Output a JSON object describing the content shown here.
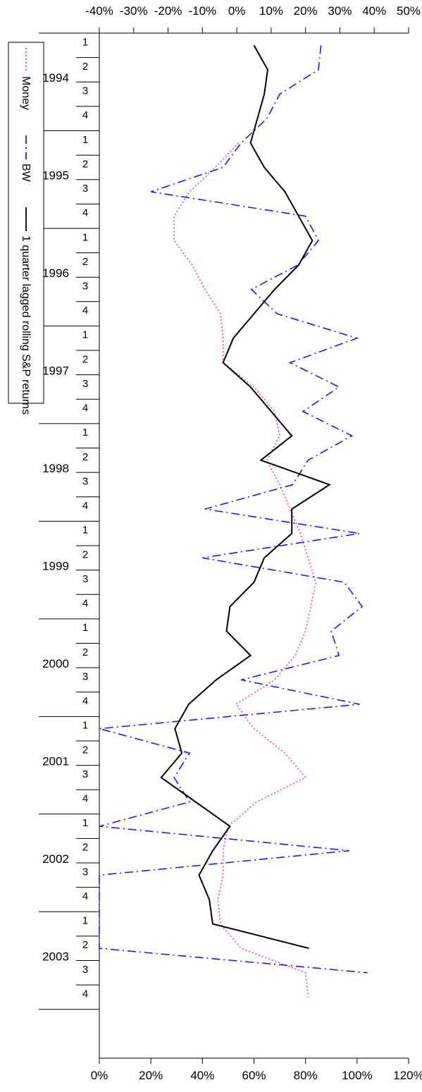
{
  "chart_data": {
    "type": "line",
    "quarter_labels": [
      "1",
      "2",
      "3",
      "4"
    ],
    "years": [
      "1994",
      "1995",
      "1996",
      "1997",
      "1998",
      "1999",
      "2000",
      "2001",
      "2002",
      "2003"
    ],
    "left_axis": {
      "ylim": [
        0,
        120
      ],
      "ticks": [
        0,
        20,
        40,
        60,
        80,
        100,
        120
      ],
      "tick_labels": [
        "0%",
        "20%",
        "40%",
        "60%",
        "80%",
        "100%",
        "120%"
      ]
    },
    "right_axis": {
      "ylim": [
        -40,
        50
      ],
      "ticks": [
        -40,
        -30,
        -20,
        -10,
        0,
        10,
        20,
        30,
        40,
        50
      ],
      "tick_labels": [
        "-40%",
        "-30%",
        "-20%",
        "-10%",
        "0%",
        "10%",
        "20%",
        "30%",
        "40%",
        "50%"
      ]
    },
    "series": [
      {
        "name": "Money",
        "axis": "left",
        "color": "#ff33cc",
        "style": "dotted",
        "values": [
          null,
          null,
          null,
          null,
          54,
          45,
          35,
          29,
          29,
          36,
          41,
          47,
          48,
          48,
          60,
          68,
          70,
          65,
          70,
          74,
          78,
          81,
          84,
          82,
          80,
          76,
          68,
          53,
          60,
          72,
          80,
          61,
          50,
          48,
          48,
          46,
          47,
          55,
          80,
          81,
          null,
          null
        ]
      },
      {
        "name": "BW",
        "axis": "left",
        "color": "#1a1aff",
        "style": "dashdot",
        "values": [
          86,
          85,
          70,
          65,
          55,
          48,
          20,
          80,
          85,
          77,
          59,
          69,
          100,
          74,
          93,
          79,
          98,
          81,
          75,
          41,
          101,
          40,
          95,
          102,
          90,
          93,
          55,
          101,
          0,
          35,
          29,
          35,
          0,
          97,
          0,
          0,
          0,
          0,
          104,
          null,
          null,
          null
        ]
      },
      {
        "name": "1 quarter lagged rolling S&P returns",
        "axis": "right",
        "color": "#000000",
        "style": "solid",
        "values": [
          5,
          9,
          8,
          6,
          4,
          8,
          14,
          18,
          22,
          18,
          11,
          5,
          -1,
          -4,
          4,
          10,
          16,
          7,
          27,
          16,
          16,
          8,
          5,
          -2,
          -3,
          4,
          -6,
          -14,
          -18,
          -16,
          -22,
          -12,
          -2,
          -7,
          -11,
          -8,
          -7,
          21,
          null,
          null,
          null,
          null
        ]
      }
    ],
    "legend": {
      "placement": "bottom-right",
      "items": [
        "Money",
        "BW",
        "1 quarter lagged rolling S&P returns"
      ]
    }
  }
}
